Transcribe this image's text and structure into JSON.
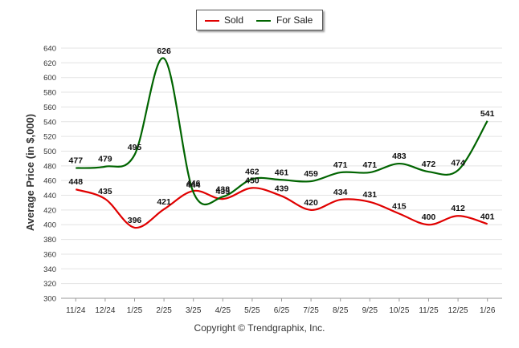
{
  "chart_data": {
    "type": "line",
    "title": "",
    "ylabel": "Average Price (in $,000)",
    "xlabel": "",
    "ylim": [
      300,
      640
    ],
    "yticks": [
      300,
      320,
      340,
      360,
      380,
      400,
      420,
      440,
      460,
      480,
      500,
      520,
      540,
      560,
      580,
      600,
      620,
      640
    ],
    "grid": true,
    "legend_position": "top-center",
    "categories": [
      "11/24",
      "12/24",
      "1/25",
      "2/25",
      "3/25",
      "4/25",
      "5/25",
      "6/25",
      "7/25",
      "8/25",
      "9/25",
      "10/25",
      "11/25",
      "12/25",
      "1/26"
    ],
    "series": [
      {
        "name": "Sold",
        "color": "#e00000",
        "values": [
          448,
          435,
          396,
          421,
          446,
          435,
          450,
          439,
          420,
          434,
          431,
          415,
          400,
          412,
          401
        ],
        "labels": [
          "448",
          "435",
          "396",
          "421",
          "446",
          "435",
          "450",
          "439",
          "420",
          "434",
          "431",
          "415",
          "400",
          "412",
          "401"
        ]
      },
      {
        "name": "For Sale",
        "color": "#006400",
        "values": [
          477,
          479,
          495,
          626,
          444,
          438,
          462,
          461,
          459,
          471,
          471,
          483,
          472,
          474,
          541
        ],
        "labels": [
          "477",
          "479",
          "495",
          "626",
          "444",
          "438",
          "462",
          "461",
          "459",
          "471",
          "471",
          "483",
          "472",
          "474",
          "541"
        ]
      }
    ]
  },
  "legend": {
    "sold_label": "Sold",
    "for_sale_label": "For Sale"
  },
  "credit": "Copyright © Trendgraphix, Inc."
}
